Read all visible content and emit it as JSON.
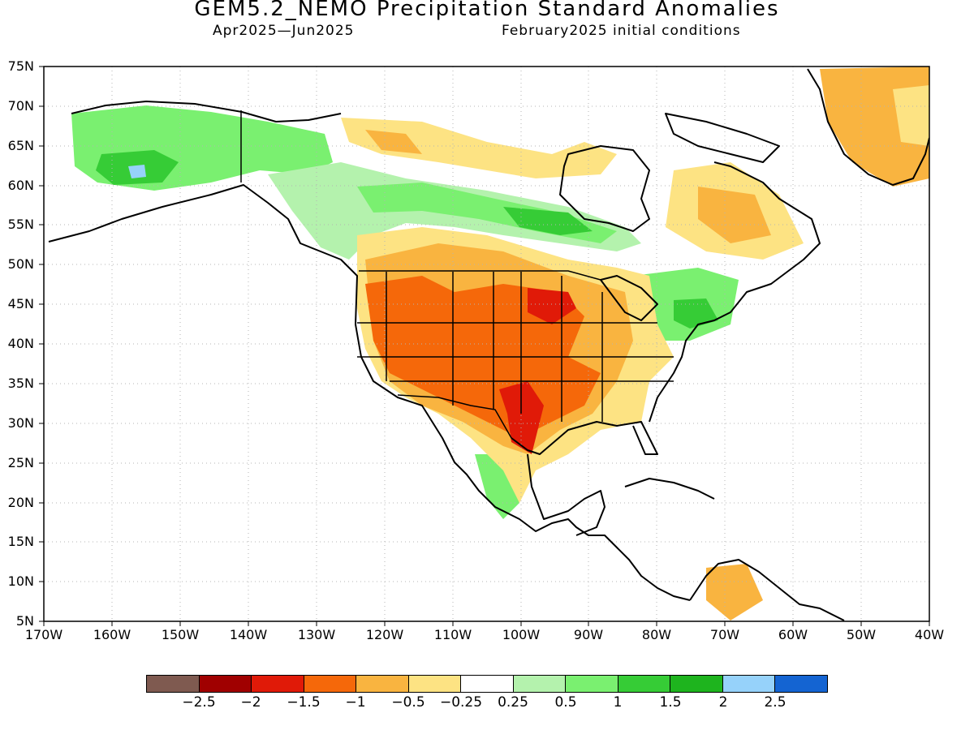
{
  "title": "GEM5.2_NEMO Precipitation Standard Anomalies",
  "subtitle_left": "Apr2025—Jun2025",
  "subtitle_right": "February2025 initial conditions",
  "map": {
    "lat_labels": [
      "75N",
      "70N",
      "65N",
      "60N",
      "55N",
      "50N",
      "45N",
      "40N",
      "35N",
      "30N",
      "25N",
      "20N",
      "15N",
      "10N",
      "5N"
    ],
    "lon_labels": [
      "170W",
      "160W",
      "150W",
      "140W",
      "130W",
      "120W",
      "110W",
      "100W",
      "90W",
      "80W",
      "70W",
      "60W",
      "50W",
      "40W"
    ],
    "lat_range": [
      5,
      75
    ],
    "lon_range": [
      -170,
      -40
    ],
    "grid": "dotted",
    "colors": {
      "land_outline": "#000000",
      "ocean": "#ffffff"
    }
  },
  "legend": {
    "colors": [
      "#7f5a50",
      "#a00000",
      "#e01a08",
      "#f5680a",
      "#f9b440",
      "#fde383",
      "#ffffff",
      "#b4f2ad",
      "#7af070",
      "#36cc36",
      "#1eb41e",
      "#96d2fa",
      "#1464d2"
    ],
    "ticks": [
      "−2.5",
      "−2",
      "−1.5",
      "−1",
      "−0.5",
      "−0.25",
      "0.25",
      "0.5",
      "1",
      "1.5",
      "2",
      "2.5"
    ]
  }
}
